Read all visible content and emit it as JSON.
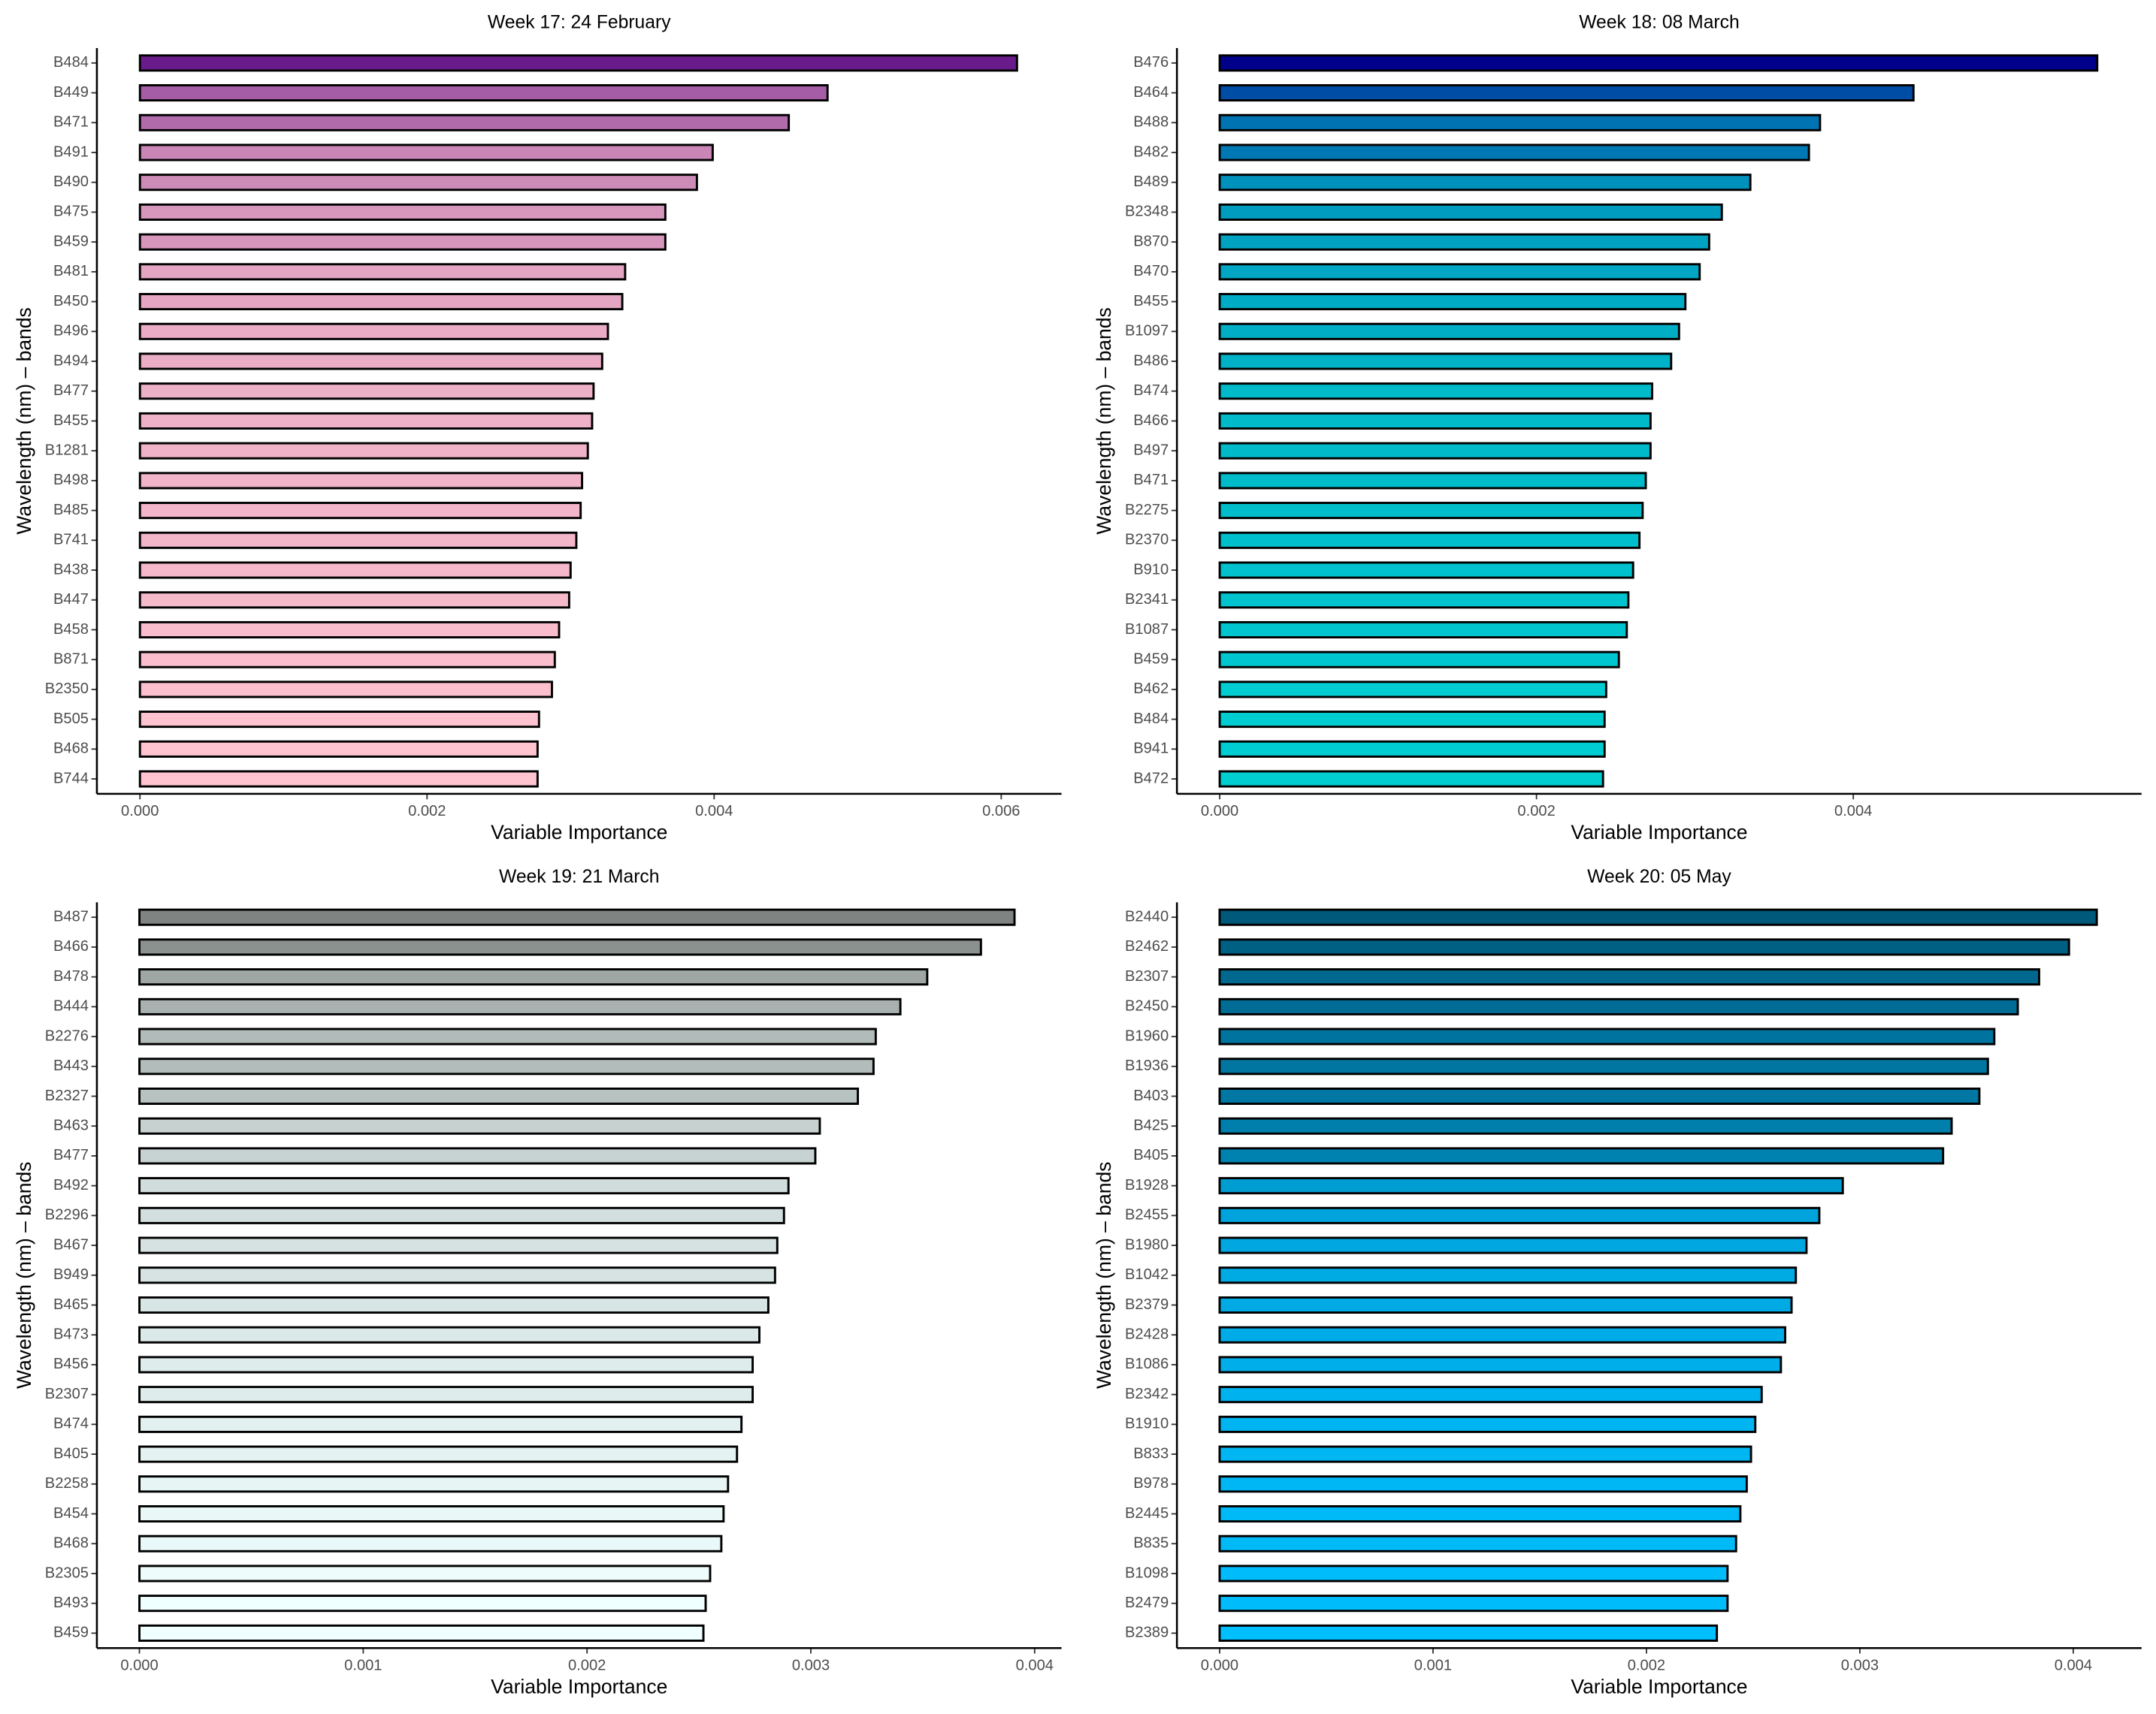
{
  "chart_data": [
    {
      "type": "bar",
      "orientation": "horizontal",
      "title": "Week 17: 24 February",
      "xlabel": "Variable Importance",
      "ylabel": "Wavelength (nm) – bands",
      "categories": [
        "B484",
        "B449",
        "B471",
        "B491",
        "B490",
        "B475",
        "B459",
        "B481",
        "B450",
        "B496",
        "B494",
        "B477",
        "B455",
        "B1281",
        "B498",
        "B485",
        "B741",
        "B438",
        "B447",
        "B458",
        "B871",
        "B2350",
        "B505",
        "B468",
        "B744"
      ],
      "values": [
        0.00611,
        0.00479,
        0.00452,
        0.00399,
        0.00388,
        0.00366,
        0.00366,
        0.00338,
        0.00336,
        0.00326,
        0.00322,
        0.00316,
        0.00315,
        0.00312,
        0.00308,
        0.00307,
        0.00304,
        0.003,
        0.00299,
        0.00292,
        0.00289,
        0.00287,
        0.00278,
        0.00277,
        0.00277
      ],
      "xlim": [
        -0.0003,
        0.00642
      ],
      "xticks": [
        {
          "value": 0,
          "label": "0.000"
        },
        {
          "value": 0.002,
          "label": "0.002"
        },
        {
          "value": 0.004,
          "label": "0.004"
        },
        {
          "value": 0.006,
          "label": "0.006"
        }
      ],
      "color_high": "#6a1b8a",
      "color_low": "#ffc4cf"
    },
    {
      "type": "bar",
      "orientation": "horizontal",
      "title": "Week 18: 08 March",
      "xlabel": "Variable Importance",
      "ylabel": "Wavelength (nm) – bands",
      "categories": [
        "B476",
        "B464",
        "B488",
        "B482",
        "B489",
        "B2348",
        "B870",
        "B470",
        "B455",
        "B1097",
        "B486",
        "B474",
        "B466",
        "B497",
        "B471",
        "B2275",
        "B2370",
        "B910",
        "B2341",
        "B1087",
        "B459",
        "B462",
        "B484",
        "B941",
        "B472"
      ],
      "values": [
        0.00554,
        0.00438,
        0.00379,
        0.00372,
        0.00335,
        0.00317,
        0.00309,
        0.00303,
        0.00294,
        0.0029,
        0.00285,
        0.00273,
        0.00272,
        0.00272,
        0.00269,
        0.00267,
        0.00265,
        0.00261,
        0.00258,
        0.00257,
        0.00252,
        0.00244,
        0.00243,
        0.00243,
        0.00242
      ],
      "xlim": [
        -0.00027,
        0.00582
      ],
      "xticks": [
        {
          "value": 0,
          "label": "0.000"
        },
        {
          "value": 0.002,
          "label": "0.002"
        },
        {
          "value": 0.004,
          "label": "0.004"
        }
      ],
      "color_high": "#00008b",
      "color_low": "#00ced1"
    },
    {
      "type": "bar",
      "orientation": "horizontal",
      "title": "Week 19: 21 March",
      "xlabel": "Variable Importance",
      "ylabel": "Wavelength (nm) – bands",
      "categories": [
        "B487",
        "B466",
        "B478",
        "B444",
        "B2276",
        "B443",
        "B2327",
        "B463",
        "B477",
        "B492",
        "B2296",
        "B467",
        "B949",
        "B465",
        "B473",
        "B456",
        "B2307",
        "B474",
        "B405",
        "B2258",
        "B454",
        "B468",
        "B2305",
        "B493",
        "B459"
      ],
      "values": [
        0.00391,
        0.00376,
        0.00352,
        0.0034,
        0.00329,
        0.00328,
        0.00321,
        0.00304,
        0.00302,
        0.0029,
        0.00288,
        0.00285,
        0.00284,
        0.00281,
        0.00277,
        0.00274,
        0.00274,
        0.00269,
        0.00267,
        0.00263,
        0.00261,
        0.0026,
        0.00255,
        0.00253,
        0.00252
      ],
      "xlim": [
        -0.00019,
        0.00412
      ],
      "xticks": [
        {
          "value": 0,
          "label": "0.000"
        },
        {
          "value": 0.001,
          "label": "0.001"
        },
        {
          "value": 0.002,
          "label": "0.002"
        },
        {
          "value": 0.003,
          "label": "0.003"
        },
        {
          "value": 0.004,
          "label": "0.004"
        }
      ],
      "color_high": "#7f8482",
      "color_low": "#f0ffff"
    },
    {
      "type": "bar",
      "orientation": "horizontal",
      "title": "Week 20: 05 May",
      "xlabel": "Variable Importance",
      "ylabel": "Wavelength (nm) – bands",
      "categories": [
        "B2440",
        "B2462",
        "B2307",
        "B2450",
        "B1960",
        "B1936",
        "B403",
        "B425",
        "B405",
        "B1928",
        "B2455",
        "B1980",
        "B1042",
        "B2379",
        "B2428",
        "B1086",
        "B2342",
        "B1910",
        "B833",
        "B978",
        "B2445",
        "B835",
        "B1098",
        "B2479",
        "B2389"
      ],
      "values": [
        0.00411,
        0.00398,
        0.00384,
        0.00374,
        0.00363,
        0.0036,
        0.00356,
        0.00343,
        0.00339,
        0.00292,
        0.00281,
        0.00275,
        0.0027,
        0.00268,
        0.00265,
        0.00263,
        0.00254,
        0.00251,
        0.00249,
        0.00247,
        0.00244,
        0.00242,
        0.00238,
        0.00238,
        0.00233
      ],
      "xlim": [
        -0.0002,
        0.00432
      ],
      "xticks": [
        {
          "value": 0,
          "label": "0.000"
        },
        {
          "value": 0.001,
          "label": "0.001"
        },
        {
          "value": 0.002,
          "label": "0.002"
        },
        {
          "value": 0.003,
          "label": "0.003"
        },
        {
          "value": 0.004,
          "label": "0.004"
        }
      ],
      "color_high": "#00587a",
      "color_low": "#00bfff"
    }
  ]
}
